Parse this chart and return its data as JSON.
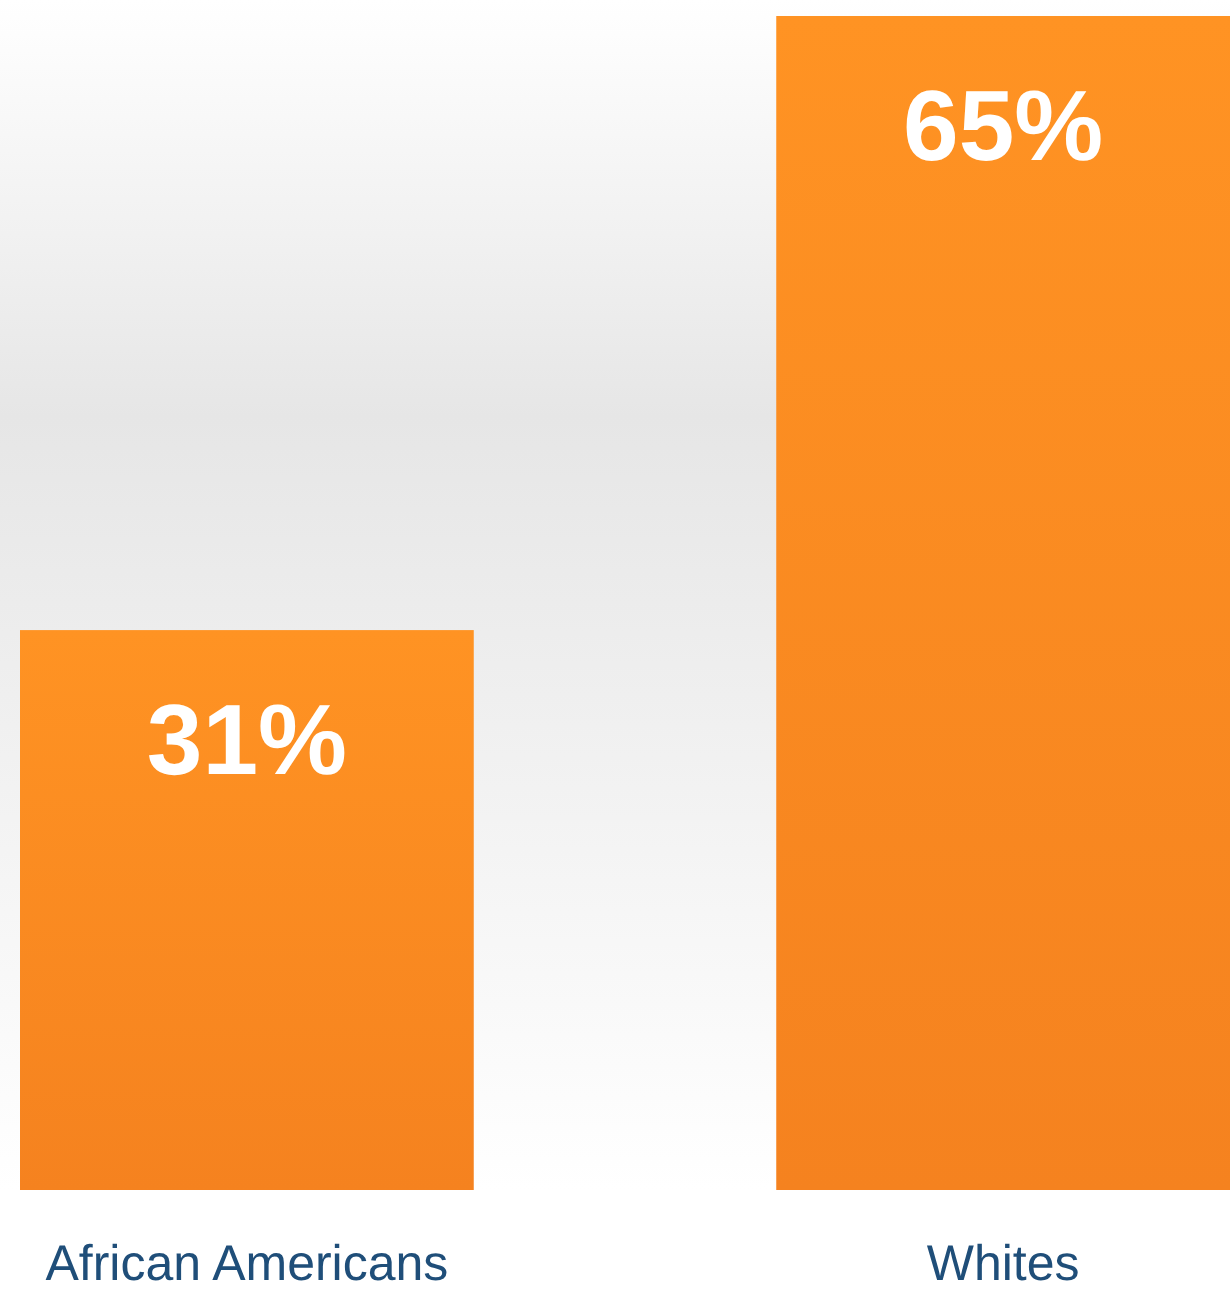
{
  "chart_data": {
    "type": "bar",
    "categories": [
      "African Americans",
      "Whites"
    ],
    "values": [
      31,
      65
    ],
    "value_labels": [
      "31%",
      "65%"
    ],
    "color": "#f5821f",
    "relative": false
  }
}
